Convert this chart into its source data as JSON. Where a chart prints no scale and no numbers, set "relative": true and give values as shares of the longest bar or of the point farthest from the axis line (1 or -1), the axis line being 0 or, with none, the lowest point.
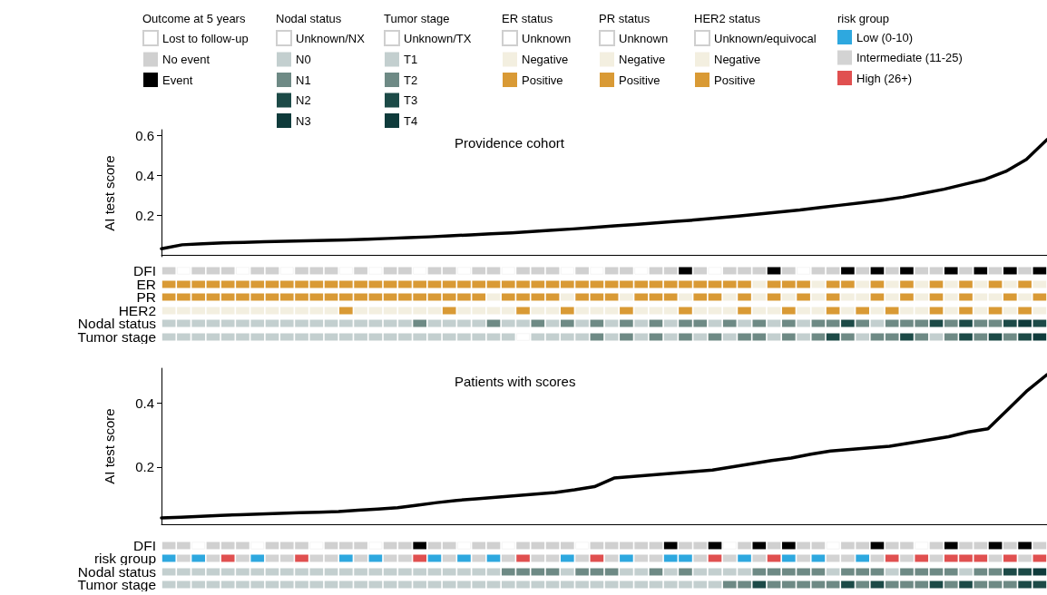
{
  "chart_data": [
    {
      "type": "other",
      "legend": "top",
      "legend_title": "Outcome at 5 years",
      "series": [
        {
          "name": "Lost to follow-up",
          "color": "#ffffff"
        },
        {
          "name": "No event",
          "color": "#d0d0d0"
        },
        {
          "name": "Event",
          "color": "#000000"
        }
      ]
    },
    {
      "type": "other",
      "legend": "top",
      "legend_title": "Nodal status",
      "series": [
        {
          "name": "Unknown/NX",
          "color": "#ffffff"
        },
        {
          "name": "N0",
          "color": "#c3cfcf"
        },
        {
          "name": "N1",
          "color": "#6e8a85"
        },
        {
          "name": "N2",
          "color": "#1c4a47"
        },
        {
          "name": "N3",
          "color": "#0f3b3b"
        }
      ]
    },
    {
      "type": "other",
      "legend": "top",
      "legend_title": "Tumor stage",
      "series": [
        {
          "name": "Unknown/TX",
          "color": "#ffffff"
        },
        {
          "name": "T1",
          "color": "#c3cfcf"
        },
        {
          "name": "T2",
          "color": "#6e8a85"
        },
        {
          "name": "T3",
          "color": "#1c4a47"
        },
        {
          "name": "T4",
          "color": "#0f3b3b"
        }
      ]
    },
    {
      "type": "other",
      "legend": "top",
      "legend_title": "ER status",
      "series": [
        {
          "name": "Unknown",
          "color": "#ffffff"
        },
        {
          "name": "Negative",
          "color": "#f3efe0"
        },
        {
          "name": "Positive",
          "color": "#d99a35"
        }
      ]
    },
    {
      "type": "other",
      "legend": "top",
      "legend_title": "PR status",
      "series": [
        {
          "name": "Unknown",
          "color": "#ffffff"
        },
        {
          "name": "Negative",
          "color": "#f3efe0"
        },
        {
          "name": "Positive",
          "color": "#d99a35"
        }
      ]
    },
    {
      "type": "other",
      "legend": "top",
      "legend_title": "HER2 status",
      "series": [
        {
          "name": "Unknown/equivocal",
          "color": "#ffffff"
        },
        {
          "name": "Negative",
          "color": "#f3efe0"
        },
        {
          "name": "Positive",
          "color": "#d99a35"
        }
      ]
    },
    {
      "type": "other",
      "legend": "top",
      "legend_title": "risk group",
      "series": [
        {
          "name": "Low (0-10)",
          "color": "#2ea8df"
        },
        {
          "name": "Intermediate (11-25)",
          "color": "#d3d3d3"
        },
        {
          "name": "High (26+)",
          "color": "#e05050"
        }
      ]
    },
    {
      "type": "line",
      "title": "Providence cohort",
      "ylabel": "AI test score",
      "ylim": [
        -0.01,
        0.63
      ],
      "yticks": [
        0.2,
        0.4,
        0.6
      ],
      "tick_labels": "y",
      "color": "#000000",
      "categories": [
        null,
        null,
        null,
        null,
        null,
        null,
        null,
        null,
        null,
        null,
        null,
        null,
        null,
        null,
        null,
        null,
        null,
        null,
        null,
        null,
        null,
        null,
        null,
        null,
        null,
        null,
        null,
        null,
        null,
        null,
        null,
        null,
        null,
        null,
        null,
        null,
        null,
        null,
        null,
        null,
        null,
        null,
        null,
        null
      ],
      "values": [
        0.03,
        0.05,
        0.055,
        0.06,
        0.062,
        0.065,
        0.068,
        0.07,
        0.072,
        0.075,
        0.078,
        0.082,
        0.086,
        0.09,
        0.095,
        0.1,
        0.105,
        0.11,
        0.117,
        0.124,
        0.13,
        0.137,
        0.145,
        0.152,
        0.16,
        0.168,
        0.176,
        0.185,
        0.195,
        0.205,
        0.215,
        0.225,
        0.238,
        0.25,
        0.262,
        0.275,
        0.29,
        0.31,
        0.33,
        0.355,
        0.38,
        0.42,
        0.48,
        0.58
      ]
    },
    {
      "type": "bar",
      "relative": true,
      "ylabel": "DFI",
      "tick_labels": false,
      "categories": [
        null,
        null,
        null,
        null,
        null,
        null,
        null,
        null,
        null,
        null,
        null,
        null,
        null,
        null,
        null,
        null,
        null,
        null,
        null,
        null,
        null,
        null,
        null,
        null,
        null,
        null,
        null,
        null,
        null,
        null,
        null,
        null,
        null,
        null,
        null,
        null,
        null,
        null,
        null,
        null,
        null,
        null,
        null,
        null,
        null,
        null,
        null,
        null,
        null,
        null,
        null,
        null,
        null,
        null,
        null,
        null,
        null,
        null,
        null,
        null
      ],
      "values": [
        1,
        1,
        1,
        1,
        1,
        1,
        1,
        1,
        1,
        1,
        1,
        1,
        1,
        1,
        1,
        1,
        1,
        1,
        1,
        1,
        1,
        1,
        1,
        1,
        1,
        1,
        1,
        1,
        1,
        1,
        1,
        1,
        1,
        1,
        1,
        1,
        1,
        1,
        1,
        1,
        1,
        1,
        1,
        1,
        1,
        1,
        1,
        1,
        1,
        1,
        1,
        1,
        1,
        1,
        1,
        1,
        1,
        1,
        1,
        1
      ],
      "colors": [
        "#d0d0d0",
        "#ffffff",
        "#d0d0d0",
        "#d0d0d0",
        "#d0d0d0",
        "#ffffff",
        "#d0d0d0",
        "#d0d0d0",
        "#ffffff",
        "#d0d0d0",
        "#d0d0d0",
        "#d0d0d0",
        "#ffffff",
        "#d0d0d0",
        "#ffffff",
        "#d0d0d0",
        "#d0d0d0",
        "#ffffff",
        "#d0d0d0",
        "#d0d0d0",
        "#ffffff",
        "#d0d0d0",
        "#d0d0d0",
        "#ffffff",
        "#d0d0d0",
        "#d0d0d0",
        "#d0d0d0",
        "#ffffff",
        "#d0d0d0",
        "#ffffff",
        "#d0d0d0",
        "#d0d0d0",
        "#ffffff",
        "#d0d0d0",
        "#d0d0d0",
        "#000000",
        "#d0d0d0",
        "#ffffff",
        "#d0d0d0",
        "#d0d0d0",
        "#d0d0d0",
        "#000000",
        "#d0d0d0",
        "#ffffff",
        "#d0d0d0",
        "#d0d0d0",
        "#000000",
        "#d0d0d0",
        "#000000",
        "#d0d0d0",
        "#000000",
        "#d0d0d0",
        "#d0d0d0",
        "#000000",
        "#d0d0d0",
        "#000000",
        "#d0d0d0",
        "#000000",
        "#d0d0d0",
        "#000000"
      ]
    },
    {
      "type": "bar",
      "relative": true,
      "ylabel": "ER",
      "tick_labels": false,
      "categories": [
        null,
        null,
        null,
        null,
        null,
        null,
        null,
        null,
        null,
        null,
        null,
        null,
        null,
        null,
        null,
        null,
        null,
        null,
        null,
        null,
        null,
        null,
        null,
        null,
        null,
        null,
        null,
        null,
        null,
        null,
        null,
        null,
        null,
        null,
        null,
        null,
        null,
        null,
        null,
        null,
        null,
        null,
        null,
        null,
        null,
        null,
        null,
        null,
        null,
        null,
        null,
        null,
        null,
        null,
        null,
        null,
        null,
        null,
        null,
        null
      ],
      "values": [
        1,
        1,
        1,
        1,
        1,
        1,
        1,
        1,
        1,
        1,
        1,
        1,
        1,
        1,
        1,
        1,
        1,
        1,
        1,
        1,
        1,
        1,
        1,
        1,
        1,
        1,
        1,
        1,
        1,
        1,
        1,
        1,
        1,
        1,
        1,
        1,
        1,
        1,
        1,
        1,
        1,
        1,
        1,
        1,
        1,
        1,
        1,
        1,
        1,
        1,
        1,
        1,
        1,
        1,
        1,
        1,
        1,
        1,
        1,
        1
      ],
      "colors": [
        "#d99a35",
        "#d99a35",
        "#d99a35",
        "#d99a35",
        "#d99a35",
        "#d99a35",
        "#d99a35",
        "#d99a35",
        "#d99a35",
        "#d99a35",
        "#d99a35",
        "#d99a35",
        "#d99a35",
        "#d99a35",
        "#d99a35",
        "#d99a35",
        "#d99a35",
        "#d99a35",
        "#d99a35",
        "#d99a35",
        "#d99a35",
        "#d99a35",
        "#d99a35",
        "#d99a35",
        "#d99a35",
        "#d99a35",
        "#d99a35",
        "#d99a35",
        "#d99a35",
        "#d99a35",
        "#d99a35",
        "#d99a35",
        "#d99a35",
        "#d99a35",
        "#d99a35",
        "#d99a35",
        "#d99a35",
        "#d99a35",
        "#d99a35",
        "#d99a35",
        "#f3efe0",
        "#d99a35",
        "#d99a35",
        "#d99a35",
        "#f3efe0",
        "#d99a35",
        "#d99a35",
        "#f3efe0",
        "#d99a35",
        "#f3efe0",
        "#d99a35",
        "#f3efe0",
        "#d99a35",
        "#f3efe0",
        "#d99a35",
        "#f3efe0",
        "#d99a35",
        "#f3efe0",
        "#d99a35",
        "#f3efe0"
      ]
    },
    {
      "type": "bar",
      "relative": true,
      "ylabel": "PR",
      "tick_labels": false,
      "categories": [
        null,
        null,
        null,
        null,
        null,
        null,
        null,
        null,
        null,
        null,
        null,
        null,
        null,
        null,
        null,
        null,
        null,
        null,
        null,
        null,
        null,
        null,
        null,
        null,
        null,
        null,
        null,
        null,
        null,
        null,
        null,
        null,
        null,
        null,
        null,
        null,
        null,
        null,
        null,
        null,
        null,
        null,
        null,
        null,
        null,
        null,
        null,
        null,
        null,
        null,
        null,
        null,
        null,
        null,
        null,
        null,
        null,
        null,
        null,
        null
      ],
      "values": [
        1,
        1,
        1,
        1,
        1,
        1,
        1,
        1,
        1,
        1,
        1,
        1,
        1,
        1,
        1,
        1,
        1,
        1,
        1,
        1,
        1,
        1,
        1,
        1,
        1,
        1,
        1,
        1,
        1,
        1,
        1,
        1,
        1,
        1,
        1,
        1,
        1,
        1,
        1,
        1,
        1,
        1,
        1,
        1,
        1,
        1,
        1,
        1,
        1,
        1,
        1,
        1,
        1,
        1,
        1,
        1,
        1,
        1,
        1,
        1
      ],
      "colors": [
        "#d99a35",
        "#d99a35",
        "#d99a35",
        "#d99a35",
        "#d99a35",
        "#d99a35",
        "#d99a35",
        "#d99a35",
        "#d99a35",
        "#d99a35",
        "#d99a35",
        "#d99a35",
        "#d99a35",
        "#d99a35",
        "#d99a35",
        "#d99a35",
        "#d99a35",
        "#d99a35",
        "#d99a35",
        "#d99a35",
        "#d99a35",
        "#d99a35",
        "#f3efe0",
        "#d99a35",
        "#d99a35",
        "#d99a35",
        "#d99a35",
        "#f3efe0",
        "#d99a35",
        "#d99a35",
        "#d99a35",
        "#f3efe0",
        "#d99a35",
        "#d99a35",
        "#d99a35",
        "#f3efe0",
        "#d99a35",
        "#d99a35",
        "#f3efe0",
        "#d99a35",
        "#f3efe0",
        "#d99a35",
        "#f3efe0",
        "#d99a35",
        "#f3efe0",
        "#d99a35",
        "#f3efe0",
        "#f3efe0",
        "#d99a35",
        "#f3efe0",
        "#d99a35",
        "#f3efe0",
        "#d99a35",
        "#f3efe0",
        "#d99a35",
        "#f3efe0",
        "#f3efe0",
        "#d99a35",
        "#f3efe0",
        "#d99a35"
      ]
    },
    {
      "type": "bar",
      "relative": true,
      "ylabel": "HER2",
      "tick_labels": false,
      "categories": [
        null,
        null,
        null,
        null,
        null,
        null,
        null,
        null,
        null,
        null,
        null,
        null,
        null,
        null,
        null,
        null,
        null,
        null,
        null,
        null,
        null,
        null,
        null,
        null,
        null,
        null,
        null,
        null,
        null,
        null,
        null,
        null,
        null,
        null,
        null,
        null,
        null,
        null,
        null,
        null,
        null,
        null,
        null,
        null,
        null,
        null,
        null,
        null,
        null,
        null,
        null,
        null,
        null,
        null,
        null,
        null,
        null,
        null,
        null,
        null
      ],
      "values": [
        1,
        1,
        1,
        1,
        1,
        1,
        1,
        1,
        1,
        1,
        1,
        1,
        1,
        1,
        1,
        1,
        1,
        1,
        1,
        1,
        1,
        1,
        1,
        1,
        1,
        1,
        1,
        1,
        1,
        1,
        1,
        1,
        1,
        1,
        1,
        1,
        1,
        1,
        1,
        1,
        1,
        1,
        1,
        1,
        1,
        1,
        1,
        1,
        1,
        1,
        1,
        1,
        1,
        1,
        1,
        1,
        1,
        1,
        1,
        1
      ],
      "colors": [
        "#f3efe0",
        "#f3efe0",
        "#f3efe0",
        "#f3efe0",
        "#f3efe0",
        "#f3efe0",
        "#f3efe0",
        "#f3efe0",
        "#f3efe0",
        "#f3efe0",
        "#f3efe0",
        "#f3efe0",
        "#d99a35",
        "#f3efe0",
        "#f3efe0",
        "#f3efe0",
        "#f3efe0",
        "#f3efe0",
        "#f3efe0",
        "#d99a35",
        "#f3efe0",
        "#f3efe0",
        "#f3efe0",
        "#f3efe0",
        "#d99a35",
        "#f3efe0",
        "#f3efe0",
        "#d99a35",
        "#f3efe0",
        "#f3efe0",
        "#f3efe0",
        "#d99a35",
        "#f3efe0",
        "#f3efe0",
        "#f3efe0",
        "#d99a35",
        "#f3efe0",
        "#f3efe0",
        "#f3efe0",
        "#d99a35",
        "#f3efe0",
        "#f3efe0",
        "#d99a35",
        "#f3efe0",
        "#f3efe0",
        "#d99a35",
        "#f3efe0",
        "#d99a35",
        "#f3efe0",
        "#d99a35",
        "#f3efe0",
        "#f3efe0",
        "#d99a35",
        "#f3efe0",
        "#d99a35",
        "#f3efe0",
        "#d99a35",
        "#f3efe0",
        "#d99a35",
        "#f3efe0"
      ]
    },
    {
      "type": "bar",
      "relative": true,
      "ylabel": "Nodal status",
      "tick_labels": false,
      "categories": [
        null,
        null,
        null,
        null,
        null,
        null,
        null,
        null,
        null,
        null,
        null,
        null,
        null,
        null,
        null,
        null,
        null,
        null,
        null,
        null,
        null,
        null,
        null,
        null,
        null,
        null,
        null,
        null,
        null,
        null,
        null,
        null,
        null,
        null,
        null,
        null,
        null,
        null,
        null,
        null,
        null,
        null,
        null,
        null,
        null,
        null,
        null,
        null,
        null,
        null,
        null,
        null,
        null,
        null,
        null,
        null,
        null,
        null,
        null,
        null
      ],
      "values": [
        1,
        1,
        1,
        1,
        1,
        1,
        1,
        1,
        1,
        1,
        1,
        1,
        1,
        1,
        1,
        1,
        1,
        1,
        1,
        1,
        1,
        1,
        1,
        1,
        1,
        1,
        1,
        1,
        1,
        1,
        1,
        1,
        1,
        1,
        1,
        1,
        1,
        1,
        1,
        1,
        1,
        1,
        1,
        1,
        1,
        1,
        1,
        1,
        1,
        1,
        1,
        1,
        1,
        1,
        1,
        1,
        1,
        1,
        1,
        1
      ],
      "colors": [
        "#c3cfcf",
        "#c3cfcf",
        "#c3cfcf",
        "#c3cfcf",
        "#c3cfcf",
        "#c3cfcf",
        "#c3cfcf",
        "#c3cfcf",
        "#c3cfcf",
        "#c3cfcf",
        "#c3cfcf",
        "#c3cfcf",
        "#c3cfcf",
        "#c3cfcf",
        "#c3cfcf",
        "#c3cfcf",
        "#c3cfcf",
        "#6e8a85",
        "#c3cfcf",
        "#c3cfcf",
        "#c3cfcf",
        "#c3cfcf",
        "#6e8a85",
        "#c3cfcf",
        "#c3cfcf",
        "#6e8a85",
        "#c3cfcf",
        "#6e8a85",
        "#c3cfcf",
        "#6e8a85",
        "#c3cfcf",
        "#6e8a85",
        "#c3cfcf",
        "#6e8a85",
        "#c3cfcf",
        "#6e8a85",
        "#6e8a85",
        "#c3cfcf",
        "#6e8a85",
        "#c3cfcf",
        "#6e8a85",
        "#c3cfcf",
        "#6e8a85",
        "#c3cfcf",
        "#6e8a85",
        "#6e8a85",
        "#1c4a47",
        "#6e8a85",
        "#c3cfcf",
        "#6e8a85",
        "#6e8a85",
        "#6e8a85",
        "#1c4a47",
        "#6e8a85",
        "#1c4a47",
        "#6e8a85",
        "#6e8a85",
        "#1c4a47",
        "#0f3b3b",
        "#1c4a47"
      ]
    },
    {
      "type": "bar",
      "relative": true,
      "ylabel": "Tumor stage",
      "tick_labels": false,
      "categories": [
        null,
        null,
        null,
        null,
        null,
        null,
        null,
        null,
        null,
        null,
        null,
        null,
        null,
        null,
        null,
        null,
        null,
        null,
        null,
        null,
        null,
        null,
        null,
        null,
        null,
        null,
        null,
        null,
        null,
        null,
        null,
        null,
        null,
        null,
        null,
        null,
        null,
        null,
        null,
        null,
        null,
        null,
        null,
        null,
        null,
        null,
        null,
        null,
        null,
        null,
        null,
        null,
        null,
        null,
        null,
        null,
        null,
        null,
        null,
        null
      ],
      "values": [
        1,
        1,
        1,
        1,
        1,
        1,
        1,
        1,
        1,
        1,
        1,
        1,
        1,
        1,
        1,
        1,
        1,
        1,
        1,
        1,
        1,
        1,
        1,
        1,
        1,
        1,
        1,
        1,
        1,
        1,
        1,
        1,
        1,
        1,
        1,
        1,
        1,
        1,
        1,
        1,
        1,
        1,
        1,
        1,
        1,
        1,
        1,
        1,
        1,
        1,
        1,
        1,
        1,
        1,
        1,
        1,
        1,
        1,
        1,
        1
      ],
      "colors": [
        "#c3cfcf",
        "#c3cfcf",
        "#c3cfcf",
        "#c3cfcf",
        "#c3cfcf",
        "#c3cfcf",
        "#c3cfcf",
        "#c3cfcf",
        "#c3cfcf",
        "#c3cfcf",
        "#c3cfcf",
        "#c3cfcf",
        "#c3cfcf",
        "#c3cfcf",
        "#c3cfcf",
        "#c3cfcf",
        "#c3cfcf",
        "#c3cfcf",
        "#c3cfcf",
        "#c3cfcf",
        "#c3cfcf",
        "#c3cfcf",
        "#c3cfcf",
        "#c3cfcf",
        "#ffffff",
        "#c3cfcf",
        "#c3cfcf",
        "#c3cfcf",
        "#c3cfcf",
        "#6e8a85",
        "#c3cfcf",
        "#6e8a85",
        "#c3cfcf",
        "#6e8a85",
        "#c3cfcf",
        "#6e8a85",
        "#c3cfcf",
        "#6e8a85",
        "#c3cfcf",
        "#6e8a85",
        "#6e8a85",
        "#c3cfcf",
        "#6e8a85",
        "#c3cfcf",
        "#6e8a85",
        "#1c4a47",
        "#6e8a85",
        "#c3cfcf",
        "#6e8a85",
        "#6e8a85",
        "#1c4a47",
        "#6e8a85",
        "#c3cfcf",
        "#6e8a85",
        "#1c4a47",
        "#6e8a85",
        "#1c4a47",
        "#6e8a85",
        "#1c4a47",
        "#0f3b3b"
      ]
    },
    {
      "type": "line",
      "title": "Patients with scores",
      "ylabel": "AI test score",
      "ylim": [
        0.02,
        0.51
      ],
      "yticks": [
        0.2,
        0.4
      ],
      "tick_labels": "y",
      "color": "#000000",
      "categories": [
        null,
        null,
        null,
        null,
        null,
        null,
        null,
        null,
        null,
        null,
        null,
        null,
        null,
        null,
        null,
        null,
        null,
        null,
        null,
        null,
        null,
        null,
        null,
        null,
        null,
        null,
        null,
        null,
        null,
        null,
        null,
        null,
        null,
        null,
        null,
        null,
        null,
        null,
        null,
        null,
        null,
        null,
        null,
        null,
        null,
        null
      ],
      "values": [
        0.04,
        0.042,
        0.045,
        0.048,
        0.05,
        0.052,
        0.054,
        0.056,
        0.058,
        0.06,
        0.064,
        0.068,
        0.072,
        0.08,
        0.088,
        0.095,
        0.1,
        0.105,
        0.11,
        0.115,
        0.12,
        0.128,
        0.138,
        0.165,
        0.17,
        0.175,
        0.18,
        0.185,
        0.19,
        0.2,
        0.21,
        0.22,
        0.228,
        0.24,
        0.25,
        0.255,
        0.26,
        0.265,
        0.275,
        0.285,
        0.295,
        0.31,
        0.32,
        0.38,
        0.44,
        0.49
      ]
    },
    {
      "type": "bar",
      "relative": true,
      "ylabel": "DFI",
      "tick_labels": false,
      "categories": [
        null,
        null,
        null,
        null,
        null,
        null,
        null,
        null,
        null,
        null,
        null,
        null,
        null,
        null,
        null,
        null,
        null,
        null,
        null,
        null,
        null,
        null,
        null,
        null,
        null,
        null,
        null,
        null,
        null,
        null,
        null,
        null,
        null,
        null,
        null,
        null,
        null,
        null,
        null,
        null,
        null,
        null,
        null,
        null,
        null,
        null,
        null,
        null,
        null,
        null,
        null,
        null,
        null,
        null,
        null,
        null,
        null,
        null,
        null,
        null
      ],
      "values": [
        1,
        1,
        1,
        1,
        1,
        1,
        1,
        1,
        1,
        1,
        1,
        1,
        1,
        1,
        1,
        1,
        1,
        1,
        1,
        1,
        1,
        1,
        1,
        1,
        1,
        1,
        1,
        1,
        1,
        1,
        1,
        1,
        1,
        1,
        1,
        1,
        1,
        1,
        1,
        1,
        1,
        1,
        1,
        1,
        1,
        1,
        1,
        1,
        1,
        1,
        1,
        1,
        1,
        1,
        1,
        1,
        1,
        1,
        1,
        1
      ],
      "colors": [
        "#d0d0d0",
        "#d0d0d0",
        "#ffffff",
        "#d0d0d0",
        "#d0d0d0",
        "#d0d0d0",
        "#ffffff",
        "#d0d0d0",
        "#d0d0d0",
        "#d0d0d0",
        "#ffffff",
        "#d0d0d0",
        "#d0d0d0",
        "#d0d0d0",
        "#ffffff",
        "#d0d0d0",
        "#d0d0d0",
        "#000000",
        "#d0d0d0",
        "#d0d0d0",
        "#ffffff",
        "#d0d0d0",
        "#d0d0d0",
        "#ffffff",
        "#d0d0d0",
        "#d0d0d0",
        "#d0d0d0",
        "#d0d0d0",
        "#ffffff",
        "#d0d0d0",
        "#d0d0d0",
        "#d0d0d0",
        "#d0d0d0",
        "#d0d0d0",
        "#000000",
        "#d0d0d0",
        "#d0d0d0",
        "#000000",
        "#ffffff",
        "#d0d0d0",
        "#000000",
        "#d0d0d0",
        "#000000",
        "#d0d0d0",
        "#d0d0d0",
        "#ffffff",
        "#d0d0d0",
        "#d0d0d0",
        "#000000",
        "#d0d0d0",
        "#d0d0d0",
        "#ffffff",
        "#d0d0d0",
        "#000000",
        "#d0d0d0",
        "#d0d0d0",
        "#000000",
        "#d0d0d0",
        "#000000",
        "#d0d0d0"
      ]
    },
    {
      "type": "bar",
      "relative": true,
      "ylabel": "risk group",
      "tick_labels": false,
      "categories": [
        null,
        null,
        null,
        null,
        null,
        null,
        null,
        null,
        null,
        null,
        null,
        null,
        null,
        null,
        null,
        null,
        null,
        null,
        null,
        null,
        null,
        null,
        null,
        null,
        null,
        null,
        null,
        null,
        null,
        null,
        null,
        null,
        null,
        null,
        null,
        null,
        null,
        null,
        null,
        null,
        null,
        null,
        null,
        null,
        null,
        null,
        null,
        null,
        null,
        null,
        null,
        null,
        null,
        null,
        null,
        null,
        null,
        null,
        null,
        null
      ],
      "values": [
        1,
        1,
        1,
        1,
        1,
        1,
        1,
        1,
        1,
        1,
        1,
        1,
        1,
        1,
        1,
        1,
        1,
        1,
        1,
        1,
        1,
        1,
        1,
        1,
        1,
        1,
        1,
        1,
        1,
        1,
        1,
        1,
        1,
        1,
        1,
        1,
        1,
        1,
        1,
        1,
        1,
        1,
        1,
        1,
        1,
        1,
        1,
        1,
        1,
        1,
        1,
        1,
        1,
        1,
        1,
        1,
        1,
        1,
        1,
        1
      ],
      "colors": [
        "#2ea8df",
        "#d3d3d3",
        "#2ea8df",
        "#d3d3d3",
        "#e05050",
        "#d3d3d3",
        "#2ea8df",
        "#d3d3d3",
        "#d3d3d3",
        "#e05050",
        "#d3d3d3",
        "#d3d3d3",
        "#2ea8df",
        "#d3d3d3",
        "#2ea8df",
        "#d3d3d3",
        "#d3d3d3",
        "#e05050",
        "#2ea8df",
        "#d3d3d3",
        "#2ea8df",
        "#d3d3d3",
        "#2ea8df",
        "#d3d3d3",
        "#e05050",
        "#d3d3d3",
        "#d3d3d3",
        "#2ea8df",
        "#d3d3d3",
        "#e05050",
        "#d3d3d3",
        "#2ea8df",
        "#d3d3d3",
        "#d3d3d3",
        "#2ea8df",
        "#2ea8df",
        "#d3d3d3",
        "#e05050",
        "#d3d3d3",
        "#2ea8df",
        "#d3d3d3",
        "#e05050",
        "#2ea8df",
        "#d3d3d3",
        "#2ea8df",
        "#d3d3d3",
        "#d3d3d3",
        "#2ea8df",
        "#d3d3d3",
        "#e05050",
        "#d3d3d3",
        "#e05050",
        "#d3d3d3",
        "#e05050",
        "#e05050",
        "#e05050",
        "#d3d3d3",
        "#e05050",
        "#d3d3d3",
        "#e05050"
      ]
    },
    {
      "type": "bar",
      "relative": true,
      "ylabel": "Nodal status",
      "tick_labels": false,
      "categories": [
        null,
        null,
        null,
        null,
        null,
        null,
        null,
        null,
        null,
        null,
        null,
        null,
        null,
        null,
        null,
        null,
        null,
        null,
        null,
        null,
        null,
        null,
        null,
        null,
        null,
        null,
        null,
        null,
        null,
        null,
        null,
        null,
        null,
        null,
        null,
        null,
        null,
        null,
        null,
        null,
        null,
        null,
        null,
        null,
        null,
        null,
        null,
        null,
        null,
        null,
        null,
        null,
        null,
        null,
        null,
        null,
        null,
        null,
        null,
        null
      ],
      "values": [
        1,
        1,
        1,
        1,
        1,
        1,
        1,
        1,
        1,
        1,
        1,
        1,
        1,
        1,
        1,
        1,
        1,
        1,
        1,
        1,
        1,
        1,
        1,
        1,
        1,
        1,
        1,
        1,
        1,
        1,
        1,
        1,
        1,
        1,
        1,
        1,
        1,
        1,
        1,
        1,
        1,
        1,
        1,
        1,
        1,
        1,
        1,
        1,
        1,
        1,
        1,
        1,
        1,
        1,
        1,
        1,
        1,
        1,
        1,
        1
      ],
      "colors": [
        "#c3cfcf",
        "#c3cfcf",
        "#c3cfcf",
        "#c3cfcf",
        "#c3cfcf",
        "#c3cfcf",
        "#c3cfcf",
        "#c3cfcf",
        "#c3cfcf",
        "#c3cfcf",
        "#c3cfcf",
        "#c3cfcf",
        "#c3cfcf",
        "#c3cfcf",
        "#c3cfcf",
        "#c3cfcf",
        "#c3cfcf",
        "#c3cfcf",
        "#c3cfcf",
        "#c3cfcf",
        "#c3cfcf",
        "#c3cfcf",
        "#c3cfcf",
        "#6e8a85",
        "#6e8a85",
        "#6e8a85",
        "#6e8a85",
        "#c3cfcf",
        "#6e8a85",
        "#6e8a85",
        "#6e8a85",
        "#c3cfcf",
        "#c3cfcf",
        "#6e8a85",
        "#c3cfcf",
        "#6e8a85",
        "#c3cfcf",
        "#c3cfcf",
        "#c3cfcf",
        "#c3cfcf",
        "#6e8a85",
        "#6e8a85",
        "#6e8a85",
        "#6e8a85",
        "#6e8a85",
        "#c3cfcf",
        "#6e8a85",
        "#6e8a85",
        "#6e8a85",
        "#c3cfcf",
        "#6e8a85",
        "#6e8a85",
        "#6e8a85",
        "#6e8a85",
        "#c3cfcf",
        "#6e8a85",
        "#6e8a85",
        "#1c4a47",
        "#1c4a47",
        "#0f3b3b"
      ]
    },
    {
      "type": "bar",
      "relative": true,
      "ylabel": "Tumor stage",
      "tick_labels": false,
      "categories": [
        null,
        null,
        null,
        null,
        null,
        null,
        null,
        null,
        null,
        null,
        null,
        null,
        null,
        null,
        null,
        null,
        null,
        null,
        null,
        null,
        null,
        null,
        null,
        null,
        null,
        null,
        null,
        null,
        null,
        null,
        null,
        null,
        null,
        null,
        null,
        null,
        null,
        null,
        null,
        null,
        null,
        null,
        null,
        null,
        null,
        null,
        null,
        null,
        null,
        null,
        null,
        null,
        null,
        null,
        null,
        null,
        null,
        null,
        null,
        null
      ],
      "values": [
        1,
        1,
        1,
        1,
        1,
        1,
        1,
        1,
        1,
        1,
        1,
        1,
        1,
        1,
        1,
        1,
        1,
        1,
        1,
        1,
        1,
        1,
        1,
        1,
        1,
        1,
        1,
        1,
        1,
        1,
        1,
        1,
        1,
        1,
        1,
        1,
        1,
        1,
        1,
        1,
        1,
        1,
        1,
        1,
        1,
        1,
        1,
        1,
        1,
        1,
        1,
        1,
        1,
        1,
        1,
        1,
        1,
        1,
        1,
        1
      ],
      "colors": [
        "#c3cfcf",
        "#c3cfcf",
        "#c3cfcf",
        "#c3cfcf",
        "#c3cfcf",
        "#c3cfcf",
        "#c3cfcf",
        "#c3cfcf",
        "#c3cfcf",
        "#c3cfcf",
        "#c3cfcf",
        "#c3cfcf",
        "#c3cfcf",
        "#c3cfcf",
        "#c3cfcf",
        "#c3cfcf",
        "#c3cfcf",
        "#c3cfcf",
        "#c3cfcf",
        "#c3cfcf",
        "#c3cfcf",
        "#c3cfcf",
        "#c3cfcf",
        "#c3cfcf",
        "#c3cfcf",
        "#c3cfcf",
        "#c3cfcf",
        "#c3cfcf",
        "#c3cfcf",
        "#c3cfcf",
        "#c3cfcf",
        "#c3cfcf",
        "#c3cfcf",
        "#c3cfcf",
        "#c3cfcf",
        "#c3cfcf",
        "#c3cfcf",
        "#c3cfcf",
        "#6e8a85",
        "#6e8a85",
        "#1c4a47",
        "#6e8a85",
        "#6e8a85",
        "#6e8a85",
        "#6e8a85",
        "#6e8a85",
        "#1c4a47",
        "#6e8a85",
        "#1c4a47",
        "#6e8a85",
        "#6e8a85",
        "#6e8a85",
        "#1c4a47",
        "#6e8a85",
        "#1c4a47",
        "#6e8a85",
        "#6e8a85",
        "#6e8a85",
        "#1c4a47",
        "#1c4a47"
      ]
    }
  ]
}
